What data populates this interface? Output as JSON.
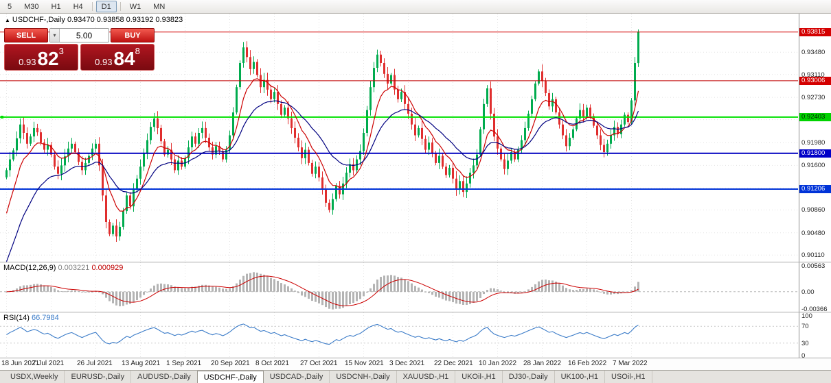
{
  "toolbar": {
    "timeframes": [
      "5",
      "M30",
      "H1",
      "H4",
      "D1",
      "W1",
      "MN"
    ],
    "active": "D1"
  },
  "chart": {
    "header": "USDCHF-,Daily  0.93470 0.93858 0.93192 0.93823",
    "symbol": "USDCHF-",
    "period": "Daily",
    "open": "0.93470",
    "high": "0.93858",
    "low": "0.93192",
    "close": "0.93823"
  },
  "trade_panel": {
    "sell_label": "SELL",
    "buy_label": "BUY",
    "volume": "5.00",
    "sell_price": {
      "prefix": "0.93",
      "big": "82",
      "sup": "3"
    },
    "buy_price": {
      "prefix": "0.93",
      "big": "84",
      "sup": "8"
    }
  },
  "price_scale": {
    "labels": [
      "0.93480",
      "0.93110",
      "0.92730",
      "0.91980",
      "0.91600",
      "0.90860",
      "0.90480",
      "0.90110"
    ],
    "grid": [
      0.9348,
      0.9311,
      0.9273,
      0.9236,
      0.9198,
      0.916,
      0.9122,
      0.9086,
      0.9048,
      0.9011
    ],
    "badges": [
      {
        "value": "0.93815",
        "price": 0.93815,
        "bg": "#d40000",
        "fg": "#ffffff"
      },
      {
        "value": "0.93006",
        "price": 0.93006,
        "bg": "#d40000",
        "fg": "#ffffff"
      },
      {
        "value": "0.92403",
        "price": 0.92403,
        "bg": "#00d300",
        "fg": "#002200"
      },
      {
        "value": "0.91800",
        "price": 0.918,
        "bg": "#0000c8",
        "fg": "#ffffff"
      },
      {
        "value": "0.91206",
        "price": 0.91206,
        "bg": "#0033d8",
        "fg": "#ffffff"
      }
    ]
  },
  "hlines": [
    {
      "price": 0.93815,
      "color": "#d40000",
      "width": 1
    },
    {
      "price": 0.93006,
      "color": "#c00000",
      "width": 1
    },
    {
      "price": 0.92403,
      "color": "#00e000",
      "width": 2
    },
    {
      "price": 0.918,
      "color": "#0000c0",
      "width": 2
    },
    {
      "price": 0.91206,
      "color": "#0033d8",
      "width": 2
    }
  ],
  "chart_data": {
    "type": "candlestick",
    "title": "USDCHF-,Daily",
    "ylim": [
      0.9,
      0.9412
    ],
    "first_open": 0.914,
    "last_high": 0.93858,
    "last_low": 0.93192,
    "colors": {
      "up": "#00ab4e",
      "down": "#e02e2e"
    },
    "x_labels": [
      "18 Jun 2021",
      "7 Jul 2021",
      "26 Jul 2021",
      "13 Aug 2021",
      "1 Sep 2021",
      "20 Sep 2021",
      "8 Oct 2021",
      "27 Oct 2021",
      "15 Nov 2021",
      "3 Dec 2021",
      "22 Dec 2021",
      "10 Jan 2022",
      "28 Jan 2022",
      "16 Feb 2022",
      "7 Mar 2022"
    ],
    "x_label_indices": [
      0,
      13,
      26,
      39,
      52,
      65,
      78,
      91,
      104,
      117,
      130,
      143,
      156,
      169,
      182
    ],
    "closes": [
      0.9152,
      0.917,
      0.9185,
      0.9205,
      0.9228,
      0.9214,
      0.9196,
      0.9208,
      0.9222,
      0.9215,
      0.9198,
      0.9186,
      0.9194,
      0.9178,
      0.9158,
      0.9146,
      0.916,
      0.9175,
      0.9188,
      0.9196,
      0.9182,
      0.9166,
      0.9152,
      0.9164,
      0.9176,
      0.9188,
      0.9196,
      0.916,
      0.911,
      0.9066,
      0.9046,
      0.906,
      0.9042,
      0.9058,
      0.9084,
      0.911,
      0.9092,
      0.912,
      0.9138,
      0.9158,
      0.918,
      0.9202,
      0.9224,
      0.9238,
      0.9222,
      0.92,
      0.9178,
      0.9186,
      0.917,
      0.9152,
      0.9168,
      0.9158,
      0.9172,
      0.919,
      0.9208,
      0.9196,
      0.9214,
      0.9222,
      0.9206,
      0.919,
      0.9178,
      0.9192,
      0.9184,
      0.917,
      0.9186,
      0.921,
      0.9248,
      0.929,
      0.933,
      0.9356,
      0.934,
      0.932,
      0.9332,
      0.931,
      0.929,
      0.9302,
      0.9286,
      0.927,
      0.9282,
      0.9262,
      0.9244,
      0.9256,
      0.9238,
      0.9222,
      0.9206,
      0.919,
      0.9172,
      0.9186,
      0.9164,
      0.9146,
      0.9158,
      0.914,
      0.912,
      0.9098,
      0.9086,
      0.9104,
      0.9126,
      0.9112,
      0.913,
      0.9148,
      0.9162,
      0.9152,
      0.917,
      0.9184,
      0.9214,
      0.9252,
      0.929,
      0.9322,
      0.9344,
      0.933,
      0.9312,
      0.9296,
      0.931,
      0.9286,
      0.927,
      0.9282,
      0.9262,
      0.9246,
      0.9228,
      0.921,
      0.9222,
      0.9204,
      0.9186,
      0.9198,
      0.918,
      0.9164,
      0.9176,
      0.9158,
      0.9144,
      0.9156,
      0.9138,
      0.912,
      0.9134,
      0.9116,
      0.913,
      0.9148,
      0.916,
      0.9178,
      0.922,
      0.9262,
      0.9288,
      0.9246,
      0.9208,
      0.9188,
      0.917,
      0.9154,
      0.9168,
      0.9182,
      0.917,
      0.9186,
      0.9202,
      0.9222,
      0.9246,
      0.927,
      0.9296,
      0.9316,
      0.93,
      0.928,
      0.9258,
      0.927,
      0.9248,
      0.9228,
      0.921,
      0.9192,
      0.9206,
      0.922,
      0.9238,
      0.9252,
      0.924,
      0.9256,
      0.9242,
      0.9226,
      0.921,
      0.9194,
      0.9182,
      0.9196,
      0.921,
      0.9224,
      0.9212,
      0.9228,
      0.9244,
      0.9232,
      0.9268,
      0.933,
      0.93823
    ],
    "ma": [
      {
        "period": 8,
        "init": 0.906,
        "color": "#cc0000"
      },
      {
        "period": 21,
        "init": 0.8985,
        "color": "#000080"
      }
    ],
    "indicators": {
      "macd": {
        "label": "MACD(12,26,9)",
        "value1": "0.003221",
        "value2": "0.000929",
        "params": [
          12,
          26,
          9
        ],
        "range": [
          -0.0043,
          0.0063
        ],
        "scale": [
          {
            "t": "0.00563",
            "v": 0.00563
          },
          {
            "t": "0.00",
            "v": 0
          },
          {
            "t": "-0.00366",
            "v": -0.00366
          }
        ],
        "histogram_color": "#b4b4b4",
        "signal_color": "#cc0000"
      },
      "rsi": {
        "label": "RSI(14)",
        "value": "66.7984",
        "period": 14,
        "levels": [
          70,
          30
        ],
        "scale": [
          {
            "t": "100",
            "v": 100
          },
          {
            "t": "70",
            "v": 70
          },
          {
            "t": "30",
            "v": 30
          },
          {
            "t": "0",
            "v": 0
          }
        ],
        "color": "#3a7bc8"
      }
    }
  },
  "tabs": {
    "items": [
      "USDX,Weekly",
      "EURUSD-,Daily",
      "AUDUSD-,Daily",
      "USDCHF-,Daily",
      "USDCAD-,Daily",
      "USDCNH-,Daily",
      "XAUUSD-,H1",
      "UKOil-,H1",
      "DJ30-,Daily",
      "UK100-,H1",
      "USOil-,H1"
    ],
    "active_index": 3
  }
}
